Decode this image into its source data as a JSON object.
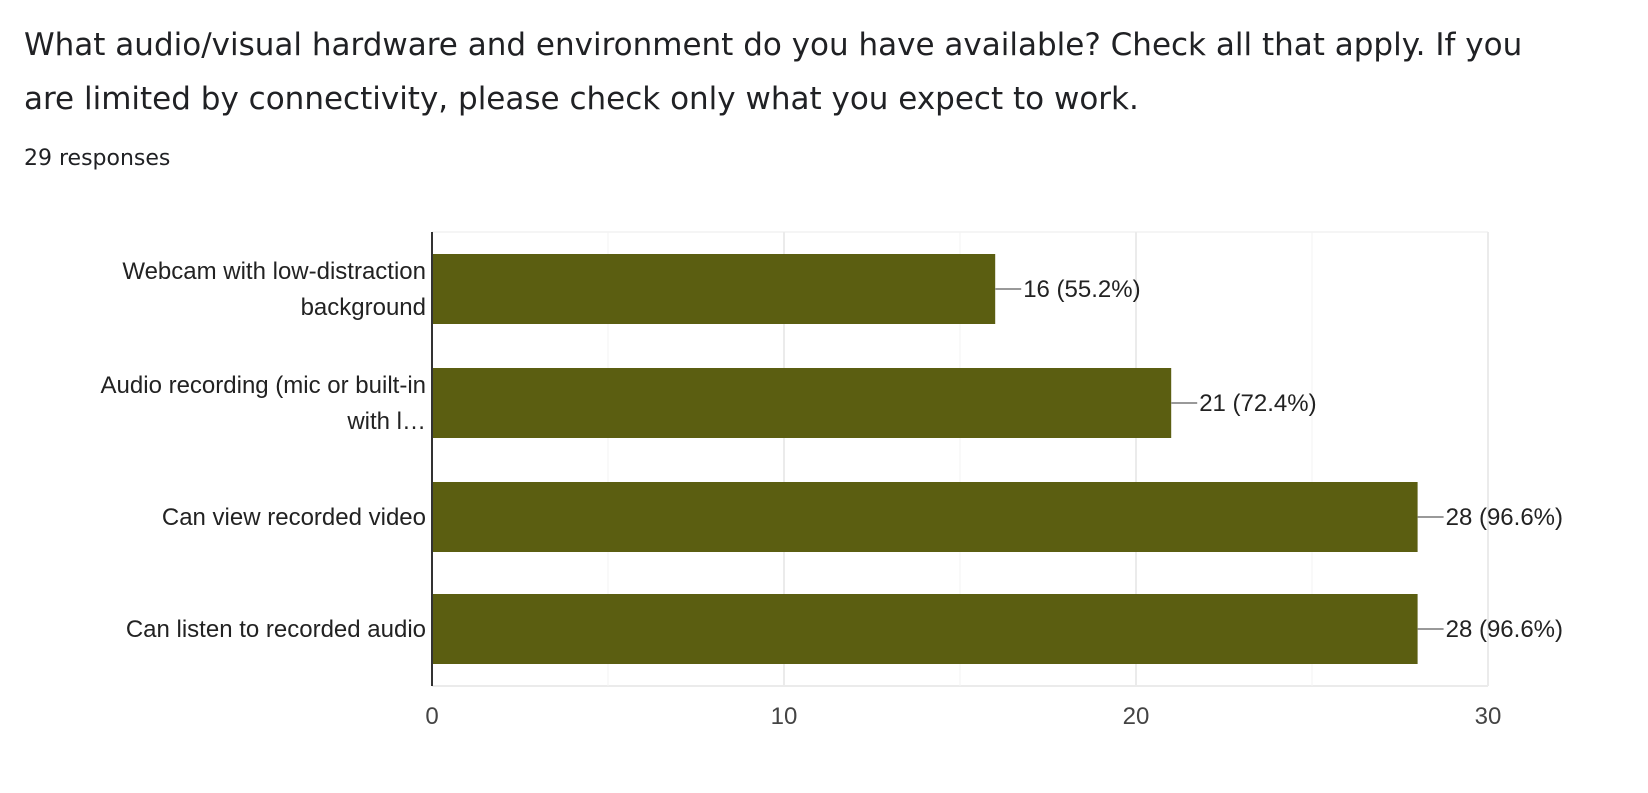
{
  "question": {
    "title": "What audio/visual hardware and environment do you have available? Check all that apply. If you are limited by connectivity, please check only what you expect to work.",
    "responses": "29 responses"
  },
  "colors": {
    "bar": "#5b5e11",
    "grid": "#ebebeb",
    "axis": "#333333",
    "leader": "#999999"
  },
  "chart_data": {
    "type": "bar",
    "orientation": "horizontal",
    "categories": [
      [
        "Webcam with low-distraction",
        "background"
      ],
      [
        "Audio recording (mic or built-in",
        "with l…"
      ],
      [
        "Can view recorded video"
      ],
      [
        "Can listen to recorded audio"
      ]
    ],
    "values": [
      16,
      21,
      28,
      28
    ],
    "value_labels": [
      "16 (55.2%)",
      "21 (72.4%)",
      "28 (96.6%)",
      "28 (96.6%)"
    ],
    "xlim": [
      0,
      30
    ],
    "xticks": [
      0,
      10,
      20,
      30
    ],
    "minor_gridlines": [
      5,
      15,
      25
    ],
    "grid": true
  }
}
